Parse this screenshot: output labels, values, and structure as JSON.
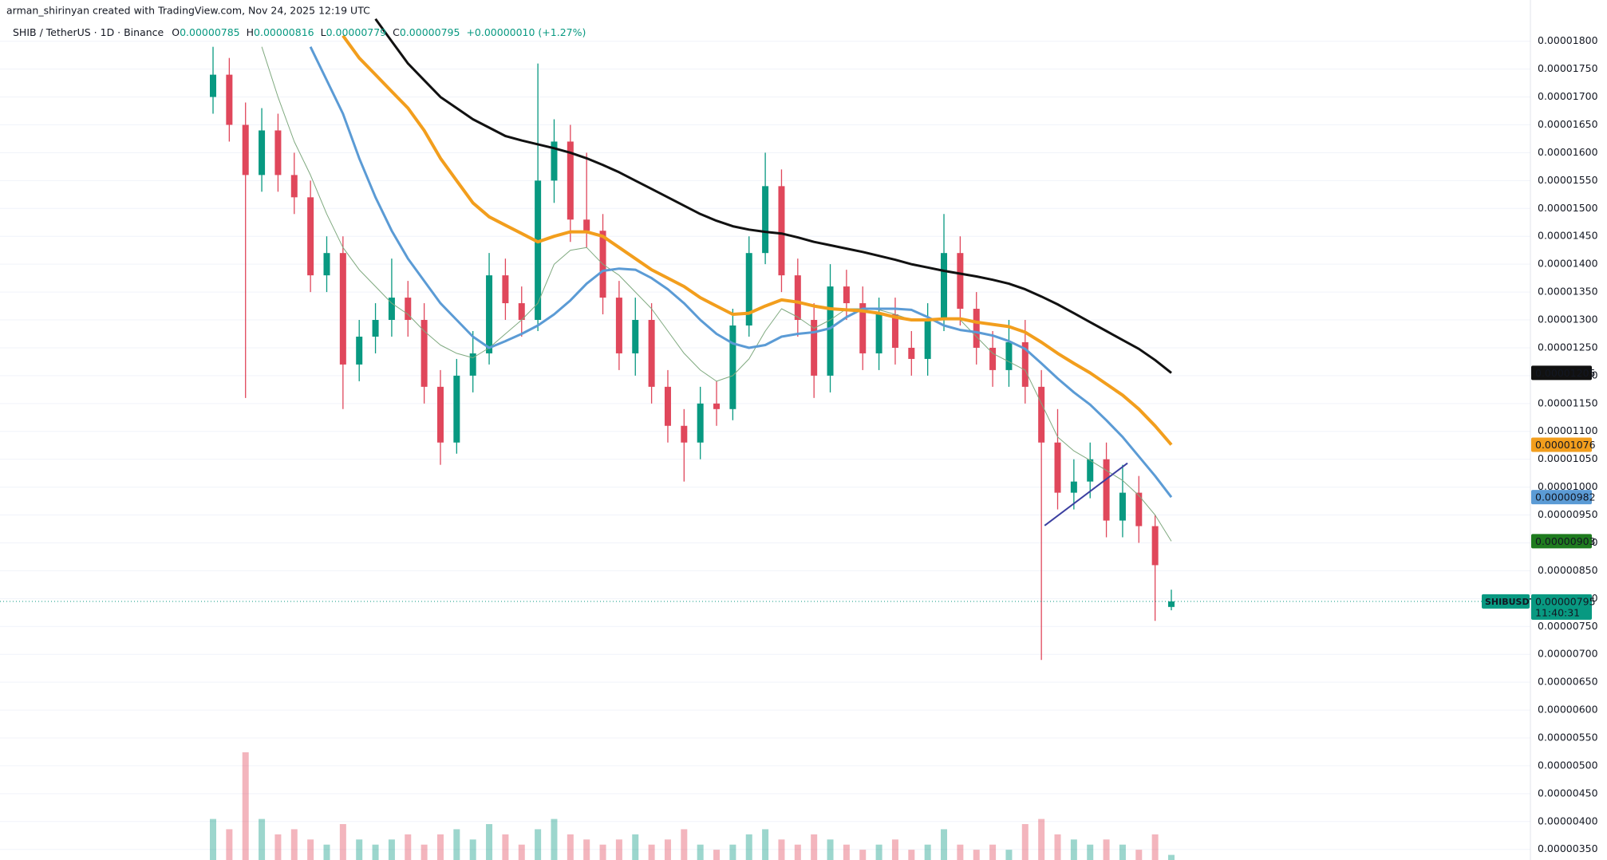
{
  "header": {
    "attribution": "arman_shirinyan created with TradingView.com, Nov 24, 2025 12:19 UTC"
  },
  "chart_data": {
    "type": "candlestick",
    "legend": {
      "symbol": "SHIB / TetherUS · 1D · Binance",
      "ohlc": [
        {
          "label": "O",
          "value": "0.00000785"
        },
        {
          "label": "H",
          "value": "0.00000816"
        },
        {
          "label": "L",
          "value": "0.00000779"
        },
        {
          "label": "C",
          "value": "0.00000795"
        }
      ],
      "change": "+0.00000010 (+1.27%)"
    },
    "ylim": [
      3.31e-06,
      1.874e-05
    ],
    "yticks": [
      {
        "value": 3.5e-06,
        "label": "0.00000350"
      },
      {
        "value": 4e-06,
        "label": "0.00000400"
      },
      {
        "value": 4.5e-06,
        "label": "0.00000450"
      },
      {
        "value": 5e-06,
        "label": "0.00000500"
      },
      {
        "value": 5.5e-06,
        "label": "0.00000550"
      },
      {
        "value": 6e-06,
        "label": "0.00000600"
      },
      {
        "value": 6.5e-06,
        "label": "0.00000650"
      },
      {
        "value": 7e-06,
        "label": "0.00000700"
      },
      {
        "value": 7.5e-06,
        "label": "0.00000750"
      },
      {
        "value": 8e-06,
        "label": "0.00000800"
      },
      {
        "value": 8.5e-06,
        "label": "0.00000850"
      },
      {
        "value": 9e-06,
        "label": "0.00000900"
      },
      {
        "value": 9.5e-06,
        "label": "0.00000950"
      },
      {
        "value": 1e-05,
        "label": "0.00001000"
      },
      {
        "value": 1.05e-05,
        "label": "0.00001050"
      },
      {
        "value": 1.1e-05,
        "label": "0.00001100"
      },
      {
        "value": 1.15e-05,
        "label": "0.00001150"
      },
      {
        "value": 1.2e-05,
        "label": "0.00001200"
      },
      {
        "value": 1.25e-05,
        "label": "0.00001250"
      },
      {
        "value": 1.3e-05,
        "label": "0.00001300"
      },
      {
        "value": 1.35e-05,
        "label": "0.00001350"
      },
      {
        "value": 1.4e-05,
        "label": "0.00001400"
      },
      {
        "value": 1.45e-05,
        "label": "0.00001450"
      },
      {
        "value": 1.5e-05,
        "label": "0.00001500"
      },
      {
        "value": 1.55e-05,
        "label": "0.00001550"
      },
      {
        "value": 1.6e-05,
        "label": "0.00001600"
      },
      {
        "value": 1.65e-05,
        "label": "0.00001650"
      },
      {
        "value": 1.7e-05,
        "label": "0.00001700"
      },
      {
        "value": 1.75e-05,
        "label": "0.00001750"
      },
      {
        "value": 1.8e-05,
        "label": "0.00001800"
      }
    ],
    "grid": true,
    "up_color": "#089981",
    "down_color": "#e0475b",
    "candles": {
      "open": [
        1.7e-05,
        1.74e-05,
        1.65e-05,
        1.56e-05,
        1.64e-05,
        1.56e-05,
        1.52e-05,
        1.38e-05,
        1.42e-05,
        1.22e-05,
        1.27e-05,
        1.3e-05,
        1.34e-05,
        1.3e-05,
        1.18e-05,
        1.08e-05,
        1.2e-05,
        1.24e-05,
        1.38e-05,
        1.33e-05,
        1.3e-05,
        1.55e-05,
        1.62e-05,
        1.48e-05,
        1.46e-05,
        1.34e-05,
        1.24e-05,
        1.3e-05,
        1.18e-05,
        1.11e-05,
        1.08e-05,
        1.15e-05,
        1.14e-05,
        1.29e-05,
        1.42e-05,
        1.54e-05,
        1.38e-05,
        1.3e-05,
        1.2e-05,
        1.36e-05,
        1.33e-05,
        1.24e-05,
        1.31e-05,
        1.25e-05,
        1.23e-05,
        1.3e-05,
        1.42e-05,
        1.32e-05,
        1.25e-05,
        1.21e-05,
        1.26e-05,
        1.18e-05,
        1.08e-05,
        9.9e-06,
        1.01e-05,
        1.05e-05,
        9.4e-06,
        9.9e-06,
        9.3e-06,
        7.85e-06
      ],
      "high": [
        1.79e-05,
        1.77e-05,
        1.69e-05,
        1.68e-05,
        1.67e-05,
        1.6e-05,
        1.55e-05,
        1.45e-05,
        1.45e-05,
        1.3e-05,
        1.33e-05,
        1.41e-05,
        1.37e-05,
        1.33e-05,
        1.21e-05,
        1.23e-05,
        1.28e-05,
        1.42e-05,
        1.41e-05,
        1.36e-05,
        1.76e-05,
        1.66e-05,
        1.65e-05,
        1.6e-05,
        1.49e-05,
        1.37e-05,
        1.34e-05,
        1.33e-05,
        1.21e-05,
        1.14e-05,
        1.18e-05,
        1.19e-05,
        1.32e-05,
        1.45e-05,
        1.6e-05,
        1.57e-05,
        1.41e-05,
        1.33e-05,
        1.4e-05,
        1.39e-05,
        1.36e-05,
        1.34e-05,
        1.34e-05,
        1.28e-05,
        1.33e-05,
        1.49e-05,
        1.45e-05,
        1.35e-05,
        1.28e-05,
        1.3e-05,
        1.3e-05,
        1.21e-05,
        1.14e-05,
        1.05e-05,
        1.08e-05,
        1.08e-05,
        1.04e-05,
        1.02e-05,
        9.5e-06,
        8.16e-06
      ],
      "low": [
        1.67e-05,
        1.62e-05,
        1.16e-05,
        1.53e-05,
        1.53e-05,
        1.49e-05,
        1.35e-05,
        1.35e-05,
        1.14e-05,
        1.19e-05,
        1.24e-05,
        1.27e-05,
        1.27e-05,
        1.15e-05,
        1.04e-05,
        1.06e-05,
        1.17e-05,
        1.22e-05,
        1.3e-05,
        1.27e-05,
        1.28e-05,
        1.51e-05,
        1.44e-05,
        1.43e-05,
        1.31e-05,
        1.21e-05,
        1.2e-05,
        1.15e-05,
        1.08e-05,
        1.01e-05,
        1.05e-05,
        1.11e-05,
        1.12e-05,
        1.27e-05,
        1.4e-05,
        1.35e-05,
        1.27e-05,
        1.16e-05,
        1.17e-05,
        1.3e-05,
        1.21e-05,
        1.21e-05,
        1.22e-05,
        1.2e-05,
        1.2e-05,
        1.28e-05,
        1.29e-05,
        1.22e-05,
        1.18e-05,
        1.18e-05,
        1.15e-05,
        6.9e-06,
        9.6e-06,
        9.6e-06,
        9.8e-06,
        9.1e-06,
        9.1e-06,
        9e-06,
        7.6e-06,
        7.79e-06
      ],
      "close": [
        1.74e-05,
        1.65e-05,
        1.56e-05,
        1.64e-05,
        1.56e-05,
        1.52e-05,
        1.38e-05,
        1.42e-05,
        1.22e-05,
        1.27e-05,
        1.3e-05,
        1.34e-05,
        1.3e-05,
        1.18e-05,
        1.08e-05,
        1.2e-05,
        1.24e-05,
        1.38e-05,
        1.33e-05,
        1.3e-05,
        1.55e-05,
        1.62e-05,
        1.48e-05,
        1.46e-05,
        1.34e-05,
        1.24e-05,
        1.3e-05,
        1.18e-05,
        1.11e-05,
        1.08e-05,
        1.15e-05,
        1.14e-05,
        1.29e-05,
        1.42e-05,
        1.54e-05,
        1.38e-05,
        1.3e-05,
        1.2e-05,
        1.36e-05,
        1.33e-05,
        1.24e-05,
        1.31e-05,
        1.25e-05,
        1.23e-05,
        1.3e-05,
        1.42e-05,
        1.32e-05,
        1.25e-05,
        1.21e-05,
        1.26e-05,
        1.18e-05,
        1.08e-05,
        9.9e-06,
        1.01e-05,
        1.05e-05,
        9.4e-06,
        9.9e-06,
        9.3e-06,
        8.6e-06,
        7.95e-06
      ]
    },
    "volume": [
      40,
      30,
      105,
      40,
      25,
      30,
      20,
      15,
      35,
      20,
      15,
      20,
      25,
      15,
      25,
      30,
      20,
      35,
      25,
      15,
      30,
      40,
      25,
      20,
      15,
      20,
      25,
      15,
      20,
      30,
      15,
      10,
      15,
      25,
      30,
      20,
      15,
      25,
      20,
      15,
      10,
      15,
      20,
      10,
      15,
      30,
      15,
      10,
      15,
      10,
      35,
      40,
      25,
      20,
      15,
      20,
      15,
      10,
      25,
      5
    ],
    "moving_averages": [
      {
        "color": "#7fa97f",
        "width": 1,
        "label_color": "#1e7b1e",
        "last_label": "0.00000903",
        "values": [
          null,
          null,
          null,
          1.79e-05,
          1.7e-05,
          1.62e-05,
          1.56e-05,
          1.49e-05,
          1.43e-05,
          1.39e-05,
          1.36e-05,
          1.33e-05,
          1.31e-05,
          1.28e-05,
          1.255e-05,
          1.24e-05,
          1.232e-05,
          1.25e-05,
          1.275e-05,
          1.3e-05,
          1.33e-05,
          1.4e-05,
          1.425e-05,
          1.43e-05,
          1.4e-05,
          1.38e-05,
          1.35e-05,
          1.32e-05,
          1.28e-05,
          1.24e-05,
          1.21e-05,
          1.19e-05,
          1.2e-05,
          1.23e-05,
          1.28e-05,
          1.32e-05,
          1.305e-05,
          1.285e-05,
          1.3e-05,
          1.32e-05,
          1.32e-05,
          1.318e-05,
          1.31e-05,
          1.3e-05,
          1.3e-05,
          1.302e-05,
          1.3e-05,
          1.27e-05,
          1.24e-05,
          1.225e-05,
          1.21e-05,
          1.15e-05,
          1.09e-05,
          1.065e-05,
          1.048e-05,
          1.03e-05,
          1.012e-05,
          9.85e-06,
          9.5e-06,
          9.03e-06
        ]
      },
      {
        "color": "#5b9bd5",
        "width": 3,
        "label_color": "#5b9bd5",
        "last_label": "0.00000982",
        "values": [
          null,
          null,
          null,
          null,
          null,
          null,
          1.79e-05,
          1.73e-05,
          1.67e-05,
          1.59e-05,
          1.52e-05,
          1.46e-05,
          1.41e-05,
          1.37e-05,
          1.33e-05,
          1.3e-05,
          1.27e-05,
          1.25e-05,
          1.262e-05,
          1.275e-05,
          1.29e-05,
          1.31e-05,
          1.335e-05,
          1.365e-05,
          1.388e-05,
          1.392e-05,
          1.39e-05,
          1.375e-05,
          1.355e-05,
          1.33e-05,
          1.3e-05,
          1.275e-05,
          1.258e-05,
          1.25e-05,
          1.255e-05,
          1.27e-05,
          1.275e-05,
          1.278e-05,
          1.285e-05,
          1.305e-05,
          1.32e-05,
          1.32e-05,
          1.32e-05,
          1.318e-05,
          1.305e-05,
          1.29e-05,
          1.282e-05,
          1.278e-05,
          1.272e-05,
          1.262e-05,
          1.248e-05,
          1.222e-05,
          1.195e-05,
          1.17e-05,
          1.148e-05,
          1.12e-05,
          1.09e-05,
          1.055e-05,
          1.02e-05,
          9.82e-06
        ]
      },
      {
        "color": "#f29e1d",
        "width": 4,
        "label_color": "#f29e1d",
        "last_label": "0.00001076",
        "values": [
          null,
          null,
          null,
          null,
          null,
          null,
          null,
          null,
          1.81e-05,
          1.77e-05,
          1.74e-05,
          1.71e-05,
          1.68e-05,
          1.64e-05,
          1.59e-05,
          1.55e-05,
          1.51e-05,
          1.485e-05,
          1.47e-05,
          1.455e-05,
          1.44e-05,
          1.45e-05,
          1.458e-05,
          1.458e-05,
          1.45e-05,
          1.43e-05,
          1.41e-05,
          1.39e-05,
          1.375e-05,
          1.36e-05,
          1.34e-05,
          1.325e-05,
          1.31e-05,
          1.312e-05,
          1.325e-05,
          1.336e-05,
          1.332e-05,
          1.325e-05,
          1.32e-05,
          1.318e-05,
          1.316e-05,
          1.312e-05,
          1.305e-05,
          1.3e-05,
          1.3e-05,
          1.302e-05,
          1.302e-05,
          1.296e-05,
          1.292e-05,
          1.288e-05,
          1.278e-05,
          1.26e-05,
          1.24e-05,
          1.222e-05,
          1.205e-05,
          1.185e-05,
          1.165e-05,
          1.14e-05,
          1.11e-05,
          1.076e-05
        ]
      },
      {
        "color": "#111111",
        "width": 3,
        "label_color": "#111111",
        "last_label": "0.00001205",
        "values": [
          null,
          null,
          null,
          null,
          null,
          null,
          null,
          null,
          null,
          null,
          1.84e-05,
          1.8e-05,
          1.76e-05,
          1.73e-05,
          1.7e-05,
          1.68e-05,
          1.66e-05,
          1.645e-05,
          1.63e-05,
          1.622e-05,
          1.615e-05,
          1.608e-05,
          1.6e-05,
          1.59e-05,
          1.578e-05,
          1.565e-05,
          1.55e-05,
          1.535e-05,
          1.52e-05,
          1.505e-05,
          1.49e-05,
          1.478e-05,
          1.468e-05,
          1.462e-05,
          1.458e-05,
          1.455e-05,
          1.448e-05,
          1.44e-05,
          1.434e-05,
          1.428e-05,
          1.422e-05,
          1.415e-05,
          1.408e-05,
          1.4e-05,
          1.394e-05,
          1.388e-05,
          1.383e-05,
          1.378e-05,
          1.372e-05,
          1.365e-05,
          1.355e-05,
          1.342e-05,
          1.328e-05,
          1.312e-05,
          1.296e-05,
          1.28e-05,
          1.264e-05,
          1.248e-05,
          1.228e-05,
          1.205e-05
        ]
      }
    ],
    "trendline": {
      "color": "#3b3fa0",
      "x": [
        51.2,
        56.3
      ],
      "y": [
        9.31e-06,
        1.043e-05
      ]
    },
    "last_price": {
      "value": 7.95e-06,
      "label": "0.00000795",
      "symbol": "SHIBUSDT",
      "countdown": "11:40:31"
    }
  }
}
